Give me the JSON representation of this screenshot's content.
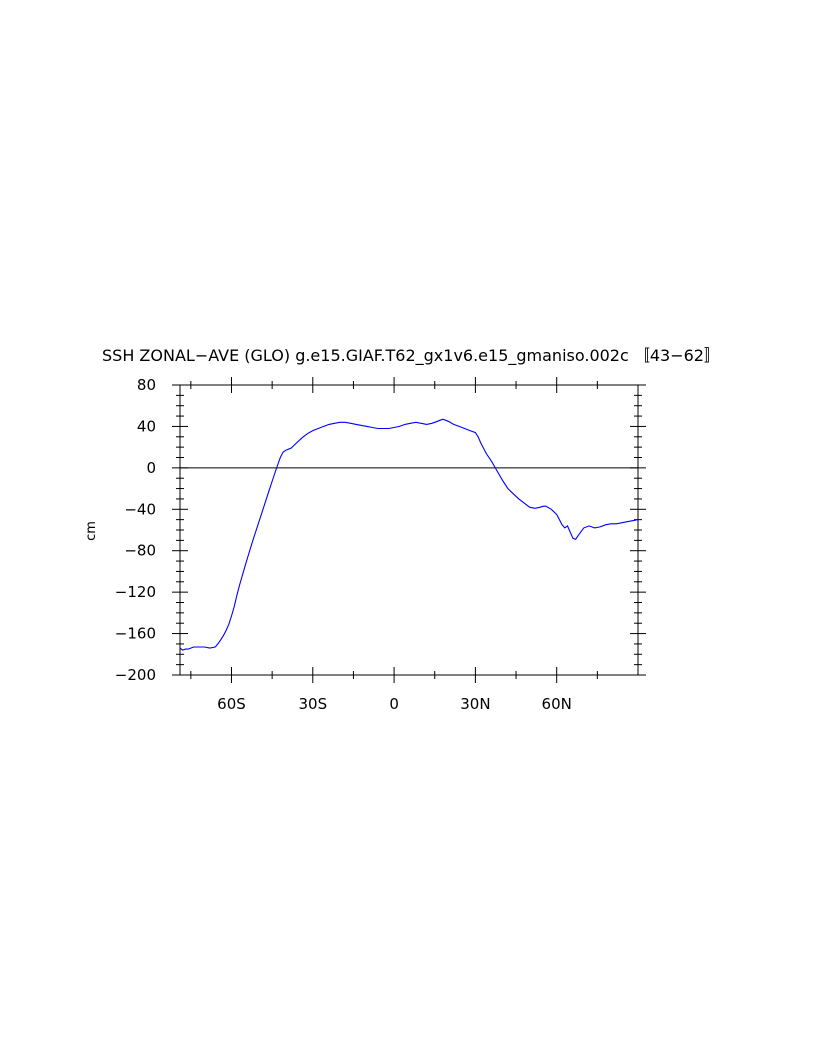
{
  "chart_data": {
    "type": "line",
    "title": "SSH ZONAL−AVE (GLO) g.e15.GIAF.T62_gx1v6.e15_gmaniso.002c 〚43−62〛",
    "xlabel": "",
    "ylabel": "cm",
    "xlim": [
      -79,
      90
    ],
    "ylim": [
      -200,
      80
    ],
    "x_ticks": [
      {
        "value": -60,
        "label": "60S"
      },
      {
        "value": -30,
        "label": "30S"
      },
      {
        "value": 0,
        "label": "0"
      },
      {
        "value": 30,
        "label": "30N"
      },
      {
        "value": 60,
        "label": "60N"
      }
    ],
    "y_ticks": [
      {
        "value": 80,
        "label": "80"
      },
      {
        "value": 40,
        "label": "40"
      },
      {
        "value": 0,
        "label": "0"
      },
      {
        "value": -40,
        "label": "−40"
      },
      {
        "value": -80,
        "label": "−80"
      },
      {
        "value": -120,
        "label": "−120"
      },
      {
        "value": -160,
        "label": "−160"
      },
      {
        "value": -200,
        "label": "−200"
      }
    ],
    "zero_line": true,
    "grid": false,
    "line_color": "#0000ff",
    "series": [
      {
        "x": [
          -79,
          -78,
          -77,
          -76,
          -75,
          -74,
          -72,
          -70,
          -68,
          -66,
          -65,
          -64,
          -63,
          -62,
          -61,
          -60,
          -59,
          -58,
          -57,
          -56,
          -55,
          -54,
          -52,
          -50,
          -48,
          -46,
          -44,
          -42,
          -41,
          -40,
          -39,
          -38,
          -36,
          -34,
          -32,
          -30,
          -28,
          -26,
          -24,
          -22,
          -20,
          -18,
          -16,
          -14,
          -12,
          -10,
          -8,
          -6,
          -4,
          -2,
          0,
          2,
          4,
          6,
          8,
          10,
          12,
          14,
          16,
          17,
          18,
          20,
          22,
          24,
          26,
          28,
          30,
          31,
          32,
          34,
          36,
          38,
          40,
          42,
          44,
          46,
          48,
          50,
          52,
          54,
          55,
          56,
          58,
          60,
          62,
          63,
          64,
          65,
          66,
          67,
          68,
          70,
          72,
          74,
          76,
          78,
          80,
          82,
          84,
          86,
          88,
          90
        ],
        "y": [
          -174,
          -176,
          -175,
          -175,
          -174,
          -173,
          -173,
          -173,
          -174,
          -173,
          -170,
          -166,
          -162,
          -157,
          -151,
          -143,
          -134,
          -123,
          -113,
          -104,
          -95,
          -86,
          -69,
          -53,
          -37,
          -21,
          -5,
          10,
          15,
          17,
          18,
          19,
          24,
          29,
          33,
          36,
          38,
          40,
          42,
          43,
          44,
          44,
          43,
          42,
          41,
          40,
          39,
          38,
          38,
          38,
          39,
          40,
          42,
          43,
          44,
          43,
          42,
          43,
          45,
          46,
          47,
          45,
          42,
          40,
          38,
          36,
          34,
          30,
          24,
          14,
          6,
          -3,
          -12,
          -20,
          -25,
          -30,
          -34,
          -38,
          -39,
          -38,
          -37,
          -37,
          -40,
          -45,
          -55,
          -58,
          -56,
          -62,
          -68,
          -69,
          -65,
          -58,
          -56,
          -58,
          -57,
          -55,
          -54,
          -54,
          -53,
          -52,
          -51,
          -50
        ]
      }
    ]
  }
}
